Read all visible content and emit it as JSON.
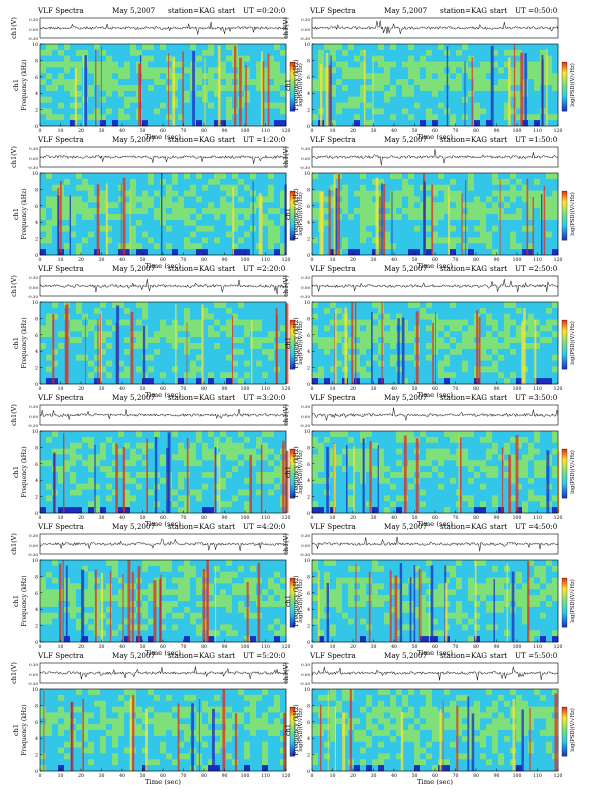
{
  "page": {
    "title_prefix": "VLF Spectra",
    "date": "May 5,2007",
    "station": "station=KAG",
    "start_label": "start",
    "ut_label": "UT"
  },
  "axes": {
    "top_ylabel": "ch1(V)",
    "ylabel_channel": "ch1",
    "ylabel": "Frequency (kHz)",
    "xlabel": "Time (sec)",
    "colorbar_label": "log(PSD)(V/√Hz)",
    "top_ticks": [
      "0.30",
      "0.00",
      "-0.30"
    ],
    "freq_ticks": [
      "0",
      "2",
      "4",
      "6",
      "8",
      "10"
    ],
    "time_ticks": [
      "0",
      "10",
      "20",
      "30",
      "40",
      "50",
      "60",
      "70",
      "80",
      "90",
      "100",
      "110",
      "120"
    ]
  },
  "colors": {
    "low": "#1a2fbf",
    "mid": "#33c6e8",
    "midhigh": "#7fe07a",
    "high": "#ffe52e",
    "peak": "#e52a1a"
  },
  "chart_data": [
    {
      "type": "heatmap",
      "start_ut": "0:20:0",
      "xlim": [
        0,
        120
      ],
      "ylim": [
        0,
        10
      ],
      "xlabel": "Time (sec)",
      "ylabel": "Frequency (kHz)"
    },
    {
      "type": "heatmap",
      "start_ut": "0:50:0",
      "xlim": [
        0,
        120
      ],
      "ylim": [
        0,
        10
      ],
      "xlabel": "Time (sec)",
      "ylabel": "Frequency (kHz)"
    },
    {
      "type": "heatmap",
      "start_ut": "1:20:0",
      "xlim": [
        0,
        120
      ],
      "ylim": [
        0,
        10
      ],
      "xlabel": "Time (sec)",
      "ylabel": "Frequency (kHz)"
    },
    {
      "type": "heatmap",
      "start_ut": "1:50:0",
      "xlim": [
        0,
        120
      ],
      "ylim": [
        0,
        10
      ],
      "xlabel": "Time (sec)",
      "ylabel": "Frequency (kHz)"
    },
    {
      "type": "heatmap",
      "start_ut": "2:20:0",
      "xlim": [
        0,
        120
      ],
      "ylim": [
        0,
        10
      ],
      "xlabel": "Time (sec)",
      "ylabel": "Frequency (kHz)"
    },
    {
      "type": "heatmap",
      "start_ut": "2:50:0",
      "xlim": [
        0,
        120
      ],
      "ylim": [
        0,
        10
      ],
      "xlabel": "Time (sec)",
      "ylabel": "Frequency (kHz)"
    },
    {
      "type": "heatmap",
      "start_ut": "3:20:0",
      "xlim": [
        0,
        120
      ],
      "ylim": [
        0,
        10
      ],
      "xlabel": "Time (sec)",
      "ylabel": "Frequency (kHz)"
    },
    {
      "type": "heatmap",
      "start_ut": "3:50:0",
      "xlim": [
        0,
        120
      ],
      "ylim": [
        0,
        10
      ],
      "xlabel": "Time (sec)",
      "ylabel": "Frequency (kHz)"
    },
    {
      "type": "heatmap",
      "start_ut": "4:20:0",
      "xlim": [
        0,
        120
      ],
      "ylim": [
        0,
        10
      ],
      "xlabel": "Time (sec)",
      "ylabel": "Frequency (kHz)"
    },
    {
      "type": "heatmap",
      "start_ut": "4:50:0",
      "xlim": [
        0,
        120
      ],
      "ylim": [
        0,
        10
      ],
      "xlabel": "Time (sec)",
      "ylabel": "Frequency (kHz)"
    },
    {
      "type": "heatmap",
      "start_ut": "5:20:0",
      "xlim": [
        0,
        120
      ],
      "ylim": [
        0,
        10
      ],
      "xlabel": "Time (sec)",
      "ylabel": "Frequency (kHz)"
    },
    {
      "type": "heatmap",
      "start_ut": "5:50:0",
      "xlim": [
        0,
        120
      ],
      "ylim": [
        0,
        10
      ],
      "xlabel": "Time (sec)",
      "ylabel": "Frequency (kHz)"
    }
  ]
}
